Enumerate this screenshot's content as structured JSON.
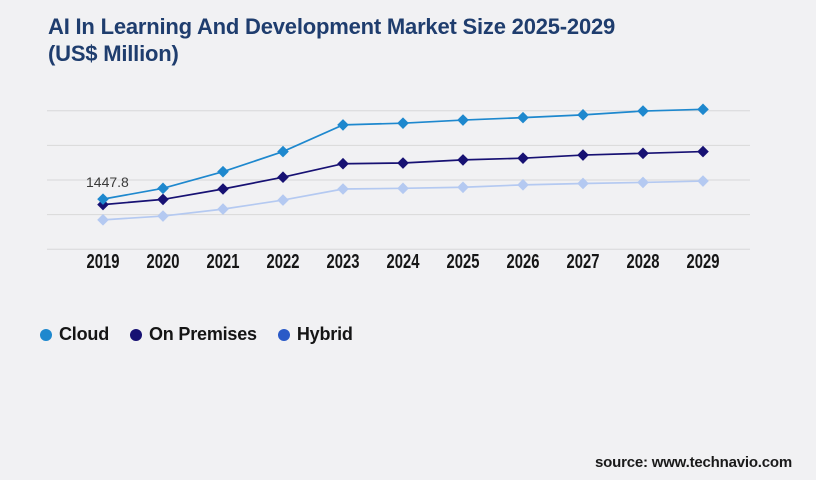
{
  "page": {
    "background": "#f1f1f3"
  },
  "header": {
    "title": "AI In Learning And Development Market Size 2025-2029",
    "title_units": "(US$ Million)",
    "title_color": "#1f3d6e"
  },
  "source": {
    "label": "source: www.technavio.com"
  },
  "chart_data": {
    "type": "line",
    "title": "AI In Learning And Development Market Size 2025-2029 (US$ Million)",
    "xlabel": "",
    "ylabel": "",
    "categories": [
      "2019",
      "2020",
      "2021",
      "2022",
      "2023",
      "2024",
      "2025",
      "2026",
      "2027",
      "2028",
      "2029"
    ],
    "series": [
      {
        "name": "Cloud",
        "color": "#1e88ce",
        "legend_color": "#1e88ce",
        "marker": "diamond",
        "values": [
          1447.8,
          1760,
          2240,
          2820,
          3590,
          3640,
          3730,
          3800,
          3880,
          3990,
          4040
        ]
      },
      {
        "name": "On Premises",
        "color": "#171173",
        "legend_color": "#171173",
        "marker": "diamond",
        "values": [
          1290,
          1440,
          1740,
          2080,
          2470,
          2490,
          2580,
          2630,
          2720,
          2770,
          2820
        ]
      },
      {
        "name": "Hybrid",
        "color": "#b4c9f1",
        "legend_color": "#2b5ac7",
        "marker": "diamond",
        "values": [
          850,
          960,
          1160,
          1420,
          1740,
          1760,
          1790,
          1860,
          1900,
          1930,
          1970
        ]
      }
    ],
    "annotation": {
      "text": "1447.8",
      "series": "Cloud",
      "category": "2019"
    },
    "ylim": [
      0,
      4000
    ],
    "gridlines": {
      "horizontal": 5,
      "color": "#d8d8d9"
    },
    "legend_position": "bottom-left",
    "axis_text_color": "#161616",
    "annotation_color": "#3a3a3a"
  }
}
